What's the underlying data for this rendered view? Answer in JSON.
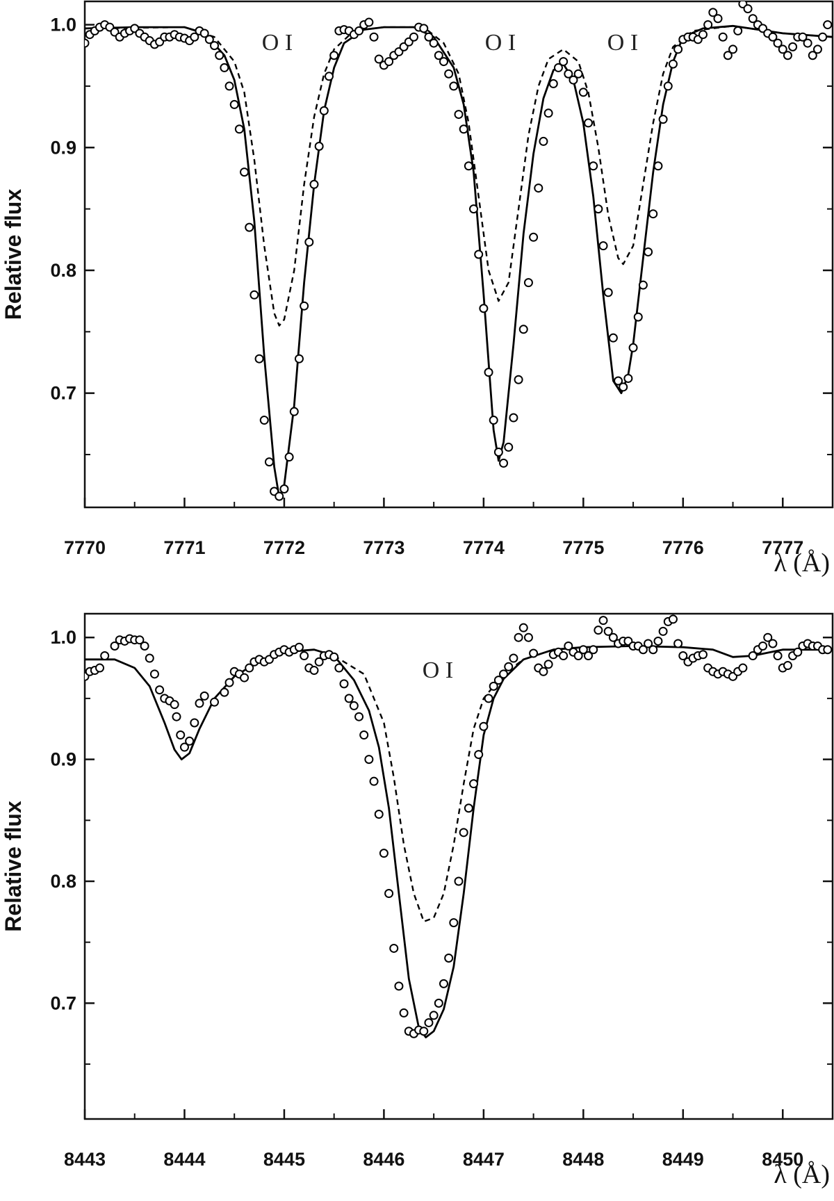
{
  "chart_data": [
    {
      "type": "line",
      "xlabel": "λ (Å)",
      "ylabel": "Relative flux",
      "xlim": [
        7770,
        7777.5
      ],
      "ylim": [
        0.607,
        1.019
      ],
      "xticks": [
        7770,
        7771,
        7772,
        7773,
        7774,
        7775,
        7776,
        7777
      ],
      "yticks": [
        0.7,
        0.8,
        0.9,
        {
          "value": 1,
          "label": "1.0"
        }
      ],
      "annotations": [
        "O I",
        "O I",
        "O I"
      ],
      "series": [
        {
          "style": "markers",
          "color": "#000",
          "x": [
            7770.0,
            7770.05,
            7770.1,
            7770.15,
            7770.2,
            7770.25,
            7770.3,
            7770.35,
            7770.4,
            7770.45,
            7770.5,
            7770.55,
            7770.6,
            7770.65,
            7770.7,
            7770.75,
            7770.8,
            7770.85,
            7770.9,
            7770.95,
            7771.0,
            7771.05,
            7771.1,
            7771.15,
            7771.2,
            7771.25,
            7771.3,
            7771.35,
            7771.4,
            7771.45,
            7771.5,
            7771.55,
            7771.6,
            7771.65,
            7771.7,
            7771.75,
            7771.8,
            7771.85,
            7771.9,
            7771.95,
            7772.0,
            7772.05,
            7772.1,
            7772.15,
            7772.2,
            7772.25,
            7772.3,
            7772.35,
            7772.4,
            7772.45,
            7772.5,
            7772.55,
            7772.6,
            7772.65,
            7772.7,
            7772.75,
            7772.8,
            7772.85,
            7772.9,
            7772.95,
            7773.0,
            7773.05,
            7773.1,
            7773.15,
            7773.2,
            7773.25,
            7773.3,
            7773.35,
            7773.4,
            7773.45,
            7773.5,
            7773.55,
            7773.6,
            7773.65,
            7773.7,
            7773.75,
            7773.8,
            7773.85,
            7773.9,
            7773.95,
            7774.0,
            7774.05,
            7774.1,
            7774.15,
            7774.2,
            7774.25,
            7774.3,
            7774.35,
            7774.4,
            7774.45,
            7774.5,
            7774.55,
            7774.6,
            7774.65,
            7774.7,
            7774.75,
            7774.8,
            7774.85,
            7774.9,
            7774.95,
            7775.0,
            7775.05,
            7775.1,
            7775.15,
            7775.2,
            7775.25,
            7775.3,
            7775.35,
            7775.4,
            7775.45,
            7775.5,
            7775.55,
            7775.6,
            7775.65,
            7775.7,
            7775.75,
            7775.8,
            7775.85,
            7775.9,
            7775.95,
            7776.0,
            7776.05,
            7776.1,
            7776.15,
            7776.2,
            7776.25,
            7776.3,
            7776.35,
            7776.4,
            7776.45,
            7776.5,
            7776.55,
            7776.6,
            7776.65,
            7776.7,
            7776.75,
            7776.8,
            7776.85,
            7776.9,
            7776.95,
            7777.0,
            7777.05,
            7777.1,
            7777.15,
            7777.2,
            7777.25,
            7777.3,
            7777.35,
            7777.4,
            7777.45
          ],
          "values": [
            0.985,
            0.992,
            0.995,
            0.998,
            1.0,
            0.998,
            0.994,
            0.99,
            0.993,
            0.995,
            0.997,
            0.993,
            0.99,
            0.987,
            0.984,
            0.986,
            0.99,
            0.99,
            0.992,
            0.99,
            0.989,
            0.987,
            0.99,
            0.995,
            0.993,
            0.988,
            0.983,
            0.975,
            0.965,
            0.95,
            0.935,
            0.915,
            0.88,
            0.835,
            0.78,
            0.728,
            0.678,
            0.644,
            0.62,
            0.616,
            0.622,
            0.648,
            0.685,
            0.728,
            0.771,
            0.823,
            0.87,
            0.901,
            0.93,
            0.958,
            0.975,
            0.995,
            0.996,
            0.995,
            0.992,
            0.995,
            1.0,
            1.002,
            0.99,
            0.972,
            0.967,
            0.97,
            0.975,
            0.978,
            0.982,
            0.986,
            0.99,
            0.998,
            0.997,
            0.99,
            0.985,
            0.975,
            0.97,
            0.96,
            0.95,
            0.927,
            0.915,
            0.885,
            0.85,
            0.813,
            0.769,
            0.717,
            0.678,
            0.652,
            0.643,
            0.656,
            0.68,
            0.711,
            0.752,
            0.79,
            0.827,
            0.867,
            0.905,
            0.928,
            0.952,
            0.965,
            0.97,
            0.96,
            0.955,
            0.96,
            0.945,
            0.92,
            0.885,
            0.85,
            0.82,
            0.782,
            0.745,
            0.71,
            0.705,
            0.712,
            0.737,
            0.762,
            0.788,
            0.815,
            0.846,
            0.885,
            0.923,
            0.95,
            0.968,
            0.98,
            0.988,
            0.99,
            0.99,
            0.988,
            0.992,
            1.0,
            1.01,
            1.005,
            0.99,
            0.975,
            0.98,
            0.995,
            1.017,
            1.013,
            1.005,
            1.0,
            0.997,
            0.993,
            0.99,
            0.985,
            0.98,
            0.975,
            0.982,
            0.99,
            0.99,
            0.985,
            0.975,
            0.98,
            0.99,
            1.0
          ]
        },
        {
          "style": "solid",
          "color": "#000",
          "x": [
            7770,
            7770.5,
            7771.0,
            7771.2,
            7771.4,
            7771.5,
            7771.6,
            7771.7,
            7771.8,
            7771.9,
            7771.95,
            7772.0,
            7772.1,
            7772.2,
            7772.3,
            7772.4,
            7772.5,
            7772.6,
            7772.8,
            7773.0,
            7773.3,
            7773.5,
            7773.7,
            7773.8,
            7773.9,
            7774.0,
            7774.1,
            7774.15,
            7774.2,
            7774.3,
            7774.4,
            7774.5,
            7774.6,
            7774.7,
            7774.8,
            7774.9,
            7775.0,
            7775.1,
            7775.2,
            7775.3,
            7775.38,
            7775.45,
            7775.5,
            7775.6,
            7775.7,
            7775.8,
            7775.9,
            7776.0,
            7776.2,
            7776.5,
            7777.0,
            7777.5
          ],
          "values": [
            0.997,
            0.998,
            0.998,
            0.993,
            0.975,
            0.955,
            0.915,
            0.84,
            0.73,
            0.64,
            0.615,
            0.625,
            0.69,
            0.79,
            0.87,
            0.93,
            0.965,
            0.985,
            0.996,
            0.998,
            0.998,
            0.99,
            0.965,
            0.935,
            0.88,
            0.78,
            0.67,
            0.645,
            0.66,
            0.74,
            0.83,
            0.895,
            0.94,
            0.963,
            0.968,
            0.955,
            0.92,
            0.86,
            0.78,
            0.71,
            0.7,
            0.715,
            0.74,
            0.81,
            0.88,
            0.935,
            0.97,
            0.99,
            0.997,
            0.999,
            0.993,
            0.99
          ]
        },
        {
          "style": "dashed",
          "color": "#000",
          "x": [
            7770,
            7771,
            7771.3,
            7771.5,
            7771.6,
            7771.7,
            7771.8,
            7771.9,
            7771.95,
            7772.0,
            7772.1,
            7772.2,
            7772.3,
            7772.4,
            7772.5,
            7772.7,
            7773,
            7773.4,
            7773.6,
            7773.75,
            7773.85,
            7773.95,
            7774.05,
            7774.15,
            7774.25,
            7774.35,
            7774.45,
            7774.55,
            7774.65,
            7774.8,
            7774.95,
            7775.05,
            7775.15,
            7775.25,
            7775.35,
            7775.4,
            7775.5,
            7775.6,
            7775.7,
            7775.8,
            7775.9,
            7776.1,
            7776.5,
            7777,
            7777.5
          ],
          "values": [
            0.997,
            0.998,
            0.99,
            0.97,
            0.945,
            0.89,
            0.82,
            0.765,
            0.755,
            0.76,
            0.8,
            0.87,
            0.925,
            0.96,
            0.98,
            0.995,
            0.998,
            0.998,
            0.985,
            0.96,
            0.92,
            0.86,
            0.8,
            0.775,
            0.79,
            0.85,
            0.91,
            0.95,
            0.972,
            0.98,
            0.97,
            0.945,
            0.9,
            0.845,
            0.81,
            0.805,
            0.82,
            0.87,
            0.92,
            0.96,
            0.982,
            0.995,
            0.999,
            0.993,
            0.99
          ]
        }
      ]
    },
    {
      "type": "line",
      "xlabel": "λ (Å)",
      "ylabel": "Relative flux",
      "xlim": [
        8443,
        8450.5
      ],
      "ylim": [
        0.605,
        1.0195
      ],
      "xticks": [
        8443,
        8444,
        8445,
        8446,
        8447,
        8448,
        8449,
        8450
      ],
      "yticks": [
        0.7,
        0.8,
        0.9,
        {
          "value": 1,
          "label": "1.0"
        }
      ],
      "annotations": [
        "O I"
      ],
      "series": [
        {
          "style": "markers",
          "color": "#000",
          "x": [
            8443.0,
            8443.05,
            8443.1,
            8443.15,
            8443.2,
            8443.3,
            8443.35,
            8443.4,
            8443.45,
            8443.5,
            8443.55,
            8443.6,
            8443.65,
            8443.7,
            8443.75,
            8443.8,
            8443.85,
            8443.9,
            8443.92,
            8443.96,
            8444.0,
            8444.05,
            8444.1,
            8444.15,
            8444.2,
            8444.3,
            8444.4,
            8444.45,
            8444.5,
            8444.55,
            8444.6,
            8444.65,
            8444.7,
            8444.75,
            8444.8,
            8444.85,
            8444.9,
            8444.95,
            8445.0,
            8445.05,
            8445.1,
            8445.15,
            8445.2,
            8445.25,
            8445.3,
            8445.35,
            8445.4,
            8445.45,
            8445.5,
            8445.55,
            8445.6,
            8445.65,
            8445.7,
            8445.75,
            8445.8,
            8445.85,
            8445.9,
            8445.95,
            8446.0,
            8446.05,
            8446.1,
            8446.15,
            8446.2,
            8446.25,
            8446.3,
            8446.35,
            8446.4,
            8446.45,
            8446.5,
            8446.55,
            8446.6,
            8446.65,
            8446.7,
            8446.75,
            8446.8,
            8446.85,
            8446.9,
            8446.95,
            8447.0,
            8447.05,
            8447.1,
            8447.15,
            8447.2,
            8447.25,
            8447.3,
            8447.35,
            8447.4,
            8447.45,
            8447.5,
            8447.55,
            8447.6,
            8447.65,
            8447.7,
            8447.75,
            8447.8,
            8447.85,
            8447.9,
            8447.95,
            8448.0,
            8448.05,
            8448.1,
            8448.15,
            8448.2,
            8448.25,
            8448.3,
            8448.35,
            8448.4,
            8448.45,
            8448.5,
            8448.55,
            8448.6,
            8448.65,
            8448.7,
            8448.75,
            8448.8,
            8448.85,
            8448.9,
            8448.95,
            8449.0,
            8449.05,
            8449.1,
            8449.15,
            8449.2,
            8449.25,
            8449.3,
            8449.35,
            8449.4,
            8449.45,
            8449.5,
            8449.55,
            8449.6,
            8449.7,
            8449.75,
            8449.8,
            8449.85,
            8449.9,
            8449.95,
            8450.0,
            8450.05,
            8450.1,
            8450.15,
            8450.2,
            8450.25,
            8450.3,
            8450.35,
            8450.4,
            8450.45
          ],
          "values": [
            0.968,
            0.972,
            0.973,
            0.975,
            0.985,
            0.993,
            0.998,
            0.997,
            0.999,
            0.998,
            0.998,
            0.993,
            0.983,
            0.97,
            0.957,
            0.95,
            0.948,
            0.945,
            0.935,
            0.92,
            0.91,
            0.915,
            0.93,
            0.946,
            0.952,
            0.947,
            0.955,
            0.963,
            0.972,
            0.97,
            0.967,
            0.975,
            0.98,
            0.982,
            0.98,
            0.982,
            0.986,
            0.988,
            0.99,
            0.988,
            0.99,
            0.992,
            0.985,
            0.975,
            0.973,
            0.98,
            0.985,
            0.986,
            0.984,
            0.975,
            0.962,
            0.95,
            0.944,
            0.935,
            0.92,
            0.9,
            0.882,
            0.855,
            0.823,
            0.79,
            0.745,
            0.714,
            0.692,
            0.677,
            0.675,
            0.678,
            0.677,
            0.684,
            0.69,
            0.7,
            0.716,
            0.737,
            0.766,
            0.8,
            0.84,
            0.86,
            0.88,
            0.904,
            0.927,
            0.95,
            0.96,
            0.965,
            0.97,
            0.976,
            0.983,
            1.0,
            1.008,
            1.0,
            0.987,
            0.975,
            0.972,
            0.978,
            0.986,
            0.988,
            0.985,
            0.993,
            0.988,
            0.985,
            0.99,
            0.985,
            0.99,
            1.006,
            1.014,
            1.005,
            1.0,
            0.995,
            0.997,
            0.997,
            0.993,
            0.993,
            0.99,
            0.995,
            0.99,
            0.997,
            1.005,
            1.013,
            1.015,
            0.995,
            0.985,
            0.98,
            0.983,
            0.985,
            0.986,
            0.975,
            0.972,
            0.97,
            0.972,
            0.97,
            0.968,
            0.972,
            0.975,
            0.985,
            0.99,
            0.993,
            1.0,
            0.995,
            0.985,
            0.975,
            0.977,
            0.985,
            0.988,
            0.993,
            0.995,
            0.993,
            0.993,
            0.99,
            0.99
          ]
        },
        {
          "style": "solid",
          "color": "#000",
          "x": [
            8443,
            8443.3,
            8443.5,
            8443.65,
            8443.8,
            8443.9,
            8443.97,
            8444.05,
            8444.15,
            8444.3,
            8444.5,
            8444.7,
            8445.0,
            8445.3,
            8445.5,
            8445.7,
            8445.85,
            8445.95,
            8446.05,
            8446.15,
            8446.25,
            8446.35,
            8446.42,
            8446.5,
            8446.6,
            8446.7,
            8446.8,
            8446.9,
            8447.0,
            8447.1,
            8447.2,
            8447.4,
            8447.7,
            8448.0,
            8448.5,
            8449.0,
            8449.3,
            8449.5,
            8449.7,
            8450.0,
            8450.5
          ],
          "values": [
            0.982,
            0.982,
            0.975,
            0.96,
            0.93,
            0.908,
            0.9,
            0.905,
            0.925,
            0.95,
            0.968,
            0.978,
            0.988,
            0.99,
            0.985,
            0.965,
            0.94,
            0.91,
            0.86,
            0.79,
            0.72,
            0.68,
            0.672,
            0.677,
            0.695,
            0.73,
            0.79,
            0.86,
            0.92,
            0.95,
            0.966,
            0.982,
            0.99,
            0.992,
            0.993,
            0.992,
            0.99,
            0.984,
            0.985,
            0.99,
            0.99
          ]
        },
        {
          "style": "dashed",
          "color": "#000",
          "x": [
            8445.5,
            8445.8,
            8446.0,
            8446.1,
            8446.2,
            8446.3,
            8446.4,
            8446.5,
            8446.6,
            8446.7,
            8446.8,
            8446.9,
            8447.0,
            8447.2,
            8447.4
          ],
          "values": [
            0.985,
            0.97,
            0.93,
            0.885,
            0.83,
            0.79,
            0.767,
            0.77,
            0.79,
            0.83,
            0.88,
            0.925,
            0.95,
            0.97,
            0.982
          ]
        }
      ]
    }
  ]
}
